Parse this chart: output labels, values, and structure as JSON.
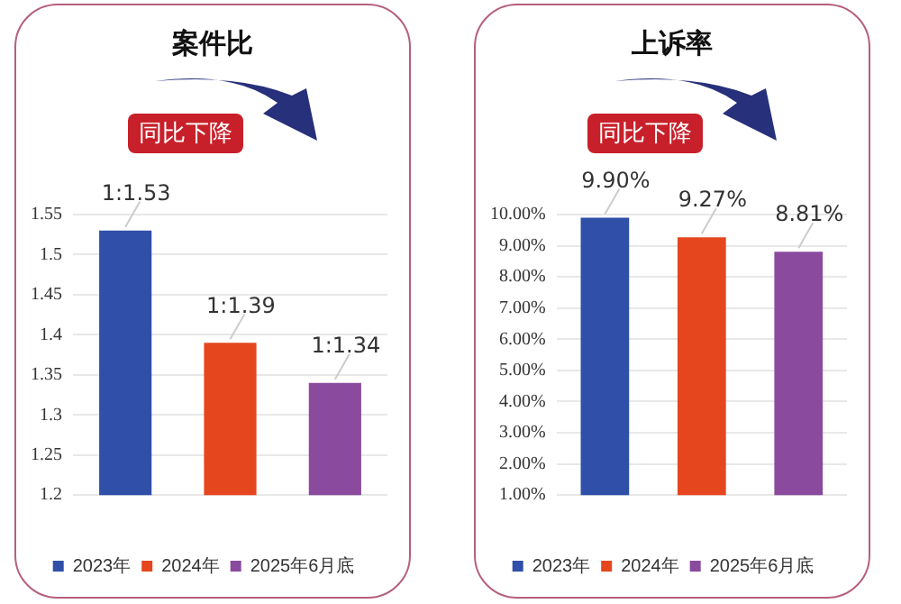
{
  "chart_data": [
    {
      "type": "bar",
      "title": "案件比",
      "annotations": [
        "同比下降"
      ],
      "categories": [
        null
      ],
      "series": [
        {
          "name": "2023年",
          "color": "#2f4fa8",
          "values": [
            1.53
          ],
          "value_labels": [
            "1:1.53"
          ]
        },
        {
          "name": "2024年",
          "color": "#e5461e",
          "values": [
            1.39
          ],
          "value_labels": [
            "1:1.39"
          ]
        },
        {
          "name": "2025年6月底",
          "color": "#8a4a9e",
          "values": [
            1.34
          ],
          "value_labels": [
            "1:1.34"
          ]
        }
      ],
      "ylim": [
        1.2,
        1.55
      ],
      "yticks": [
        1.2,
        1.25,
        1.3,
        1.35,
        1.4,
        1.45,
        1.5,
        1.55
      ],
      "grid": "y",
      "legend": "bottom"
    },
    {
      "type": "bar",
      "title": "上诉率",
      "annotations": [
        "同比下降"
      ],
      "categories": [
        null
      ],
      "series": [
        {
          "name": "2023年",
          "color": "#2f4fa8",
          "values": [
            9.9
          ],
          "value_labels": [
            "9.90%"
          ]
        },
        {
          "name": "2024年",
          "color": "#e5461e",
          "values": [
            9.27
          ],
          "value_labels": [
            "9.27%"
          ]
        },
        {
          "name": "2025年6月底",
          "color": "#8a4a9e",
          "values": [
            8.81
          ],
          "value_labels": [
            "8.81%"
          ]
        }
      ],
      "ylim": [
        1,
        10
      ],
      "yticks": [
        {
          "value": 1,
          "label": "1.00%"
        },
        {
          "value": 2,
          "label": "2.00%"
        },
        {
          "value": 3,
          "label": "3.00%"
        },
        {
          "value": 4,
          "label": "4.00%"
        },
        {
          "value": 5,
          "label": "5.00%"
        },
        {
          "value": 6,
          "label": "6.00%"
        },
        {
          "value": 7,
          "label": "7.00%"
        },
        {
          "value": 8,
          "label": "8.00%"
        },
        {
          "value": 9,
          "label": "9.00%"
        },
        {
          "value": 10,
          "label": "10.00%"
        }
      ],
      "grid": "y",
      "legend": "bottom"
    }
  ]
}
